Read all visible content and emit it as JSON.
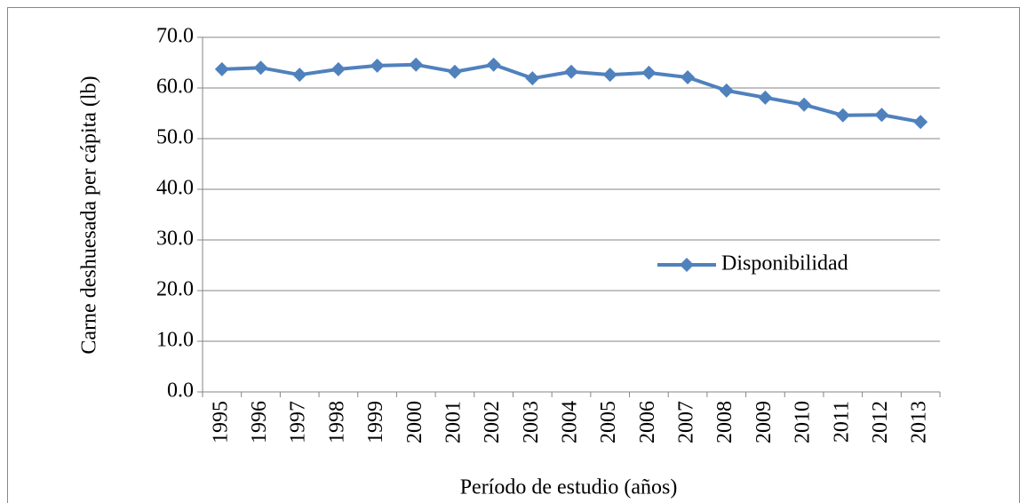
{
  "chart_data": {
    "type": "line",
    "y_label": "Carne deshuesada per cápita (lb)",
    "x_label": "Período de estudio (años)",
    "categories": [
      "1995",
      "1996",
      "1997",
      "1998",
      "1999",
      "2000",
      "2001",
      "2002",
      "2003",
      "2004",
      "2005",
      "2006",
      "2007",
      "2008",
      "2009",
      "2010",
      "2011",
      "2012",
      "2013"
    ],
    "series": [
      {
        "name": "Disponibilidad",
        "color": "#4f81bd",
        "values": [
          63.7,
          64.0,
          62.6,
          63.7,
          64.4,
          64.6,
          63.2,
          64.6,
          61.9,
          63.2,
          62.6,
          63.0,
          62.1,
          59.5,
          58.1,
          56.7,
          54.6,
          54.7,
          53.3
        ]
      }
    ],
    "ylim": [
      0,
      70
    ],
    "yticks": [
      {
        "value": 0,
        "label": "0.0"
      },
      {
        "value": 10,
        "label": "10.0"
      },
      {
        "value": 20,
        "label": "20.0"
      },
      {
        "value": 30,
        "label": "30.0"
      },
      {
        "value": 40,
        "label": "40.0"
      },
      {
        "value": 50,
        "label": "50.0"
      },
      {
        "value": 60,
        "label": "60.0"
      },
      {
        "value": 70,
        "label": "70.0"
      }
    ],
    "grid": true
  }
}
